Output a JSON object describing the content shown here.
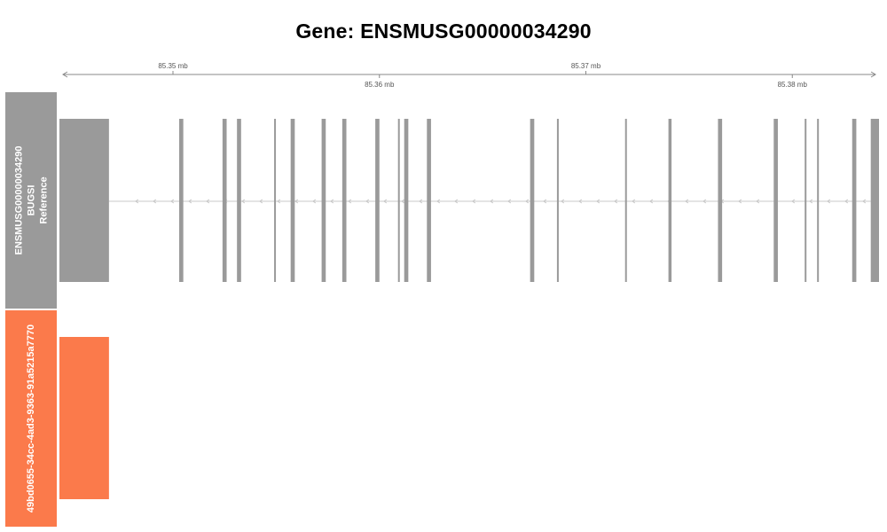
{
  "title": "Gene: ENSMUSG00000034290",
  "axis": {
    "range_mb": [
      85.3445,
      85.3842
    ],
    "ticks": [
      {
        "value": 85.35,
        "label": "85.35 mb",
        "row": "upper"
      },
      {
        "value": 85.36,
        "label": "85.36 mb",
        "row": "lower"
      },
      {
        "value": 85.37,
        "label": "85.37 mb",
        "row": "upper"
      },
      {
        "value": 85.38,
        "label": "85.38 mb",
        "row": "lower"
      }
    ]
  },
  "tracks": [
    {
      "label_lines": [
        "ENSMUSG00000034290",
        "BUGSI",
        "Reference"
      ],
      "color": "#9a9a9a",
      "strand": "minus",
      "intron_color": "#c8c8c8",
      "exons_mb": [
        [
          85.3445,
          85.3469
        ],
        [
          85.3503,
          85.3505
        ],
        [
          85.3524,
          85.3526
        ],
        [
          85.3531,
          85.3533
        ],
        [
          85.3549,
          85.35495
        ],
        [
          85.3557,
          85.3559
        ],
        [
          85.3572,
          85.3574
        ],
        [
          85.3582,
          85.3584
        ],
        [
          85.3598,
          85.36
        ],
        [
          85.3609,
          85.36095
        ],
        [
          85.3612,
          85.3614
        ],
        [
          85.3623,
          85.3625
        ],
        [
          85.3673,
          85.3675
        ],
        [
          85.3686,
          85.36865
        ],
        [
          85.3719,
          85.37195
        ],
        [
          85.374,
          85.37415
        ],
        [
          85.3764,
          85.3766
        ],
        [
          85.3791,
          85.3793
        ],
        [
          85.3806,
          85.38065
        ],
        [
          85.3812,
          85.38125
        ],
        [
          85.3829,
          85.3831
        ],
        [
          85.3838,
          85.3842
        ]
      ]
    },
    {
      "label_lines": [
        "49bd0655-34cc-4ad3-9363-91a5215a7770"
      ],
      "color": "#fb7a4b",
      "exons_mb": [
        [
          85.3445,
          85.3469
        ]
      ]
    }
  ]
}
